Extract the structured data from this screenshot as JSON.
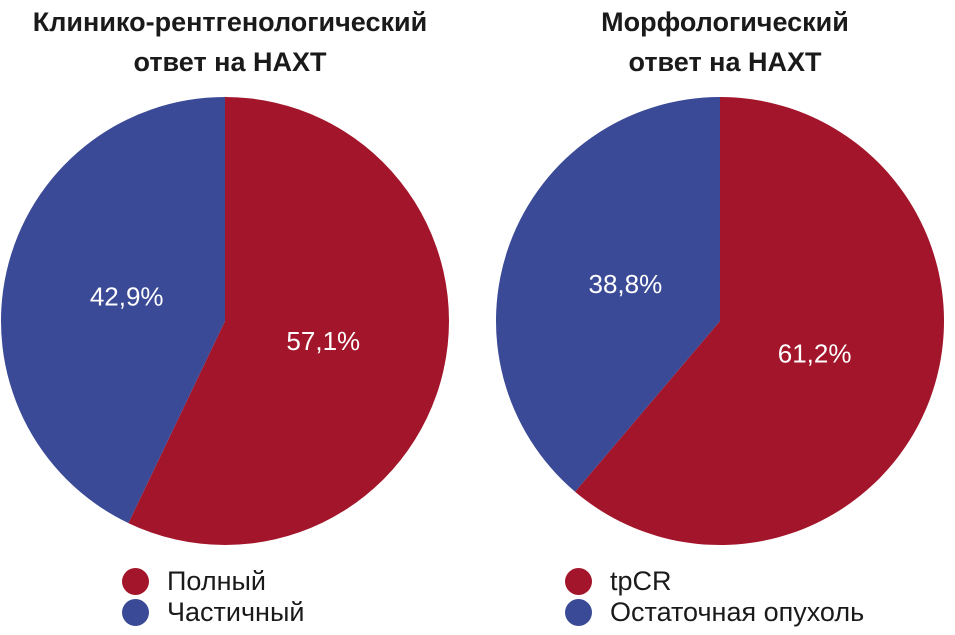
{
  "colors": {
    "red": "#A3152A",
    "blue": "#3A4A96"
  },
  "chart_data": [
    {
      "type": "pie",
      "title": [
        "Клинико-рентгенологический",
        "ответ на НАХТ"
      ],
      "slices": [
        {
          "label": "Полный",
          "value": 57.1,
          "text": "57,1%",
          "color": "#A3152A"
        },
        {
          "label": "Частичный",
          "value": 42.9,
          "text": "42,9%",
          "color": "#3A4A96"
        }
      ],
      "legend": [
        "Полный",
        "Частичный"
      ],
      "legend_position": "bottom"
    },
    {
      "type": "pie",
      "title": [
        "Морфологический",
        "ответ на НАХТ"
      ],
      "slices": [
        {
          "label": "tpCR",
          "value": 61.2,
          "text": "61,2%",
          "color": "#A3152A"
        },
        {
          "label": "Остаточная опухоль",
          "value": 38.8,
          "text": "38,8%",
          "color": "#3A4A96"
        }
      ],
      "legend": [
        "tpCR",
        "Остаточная опухоль"
      ],
      "legend_position": "bottom"
    }
  ]
}
